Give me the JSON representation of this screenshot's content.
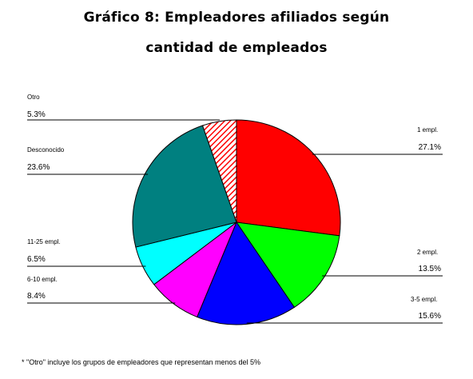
{
  "title_line1": "Gráfico 8: Empleadores afiliados según",
  "title_line2": "cantidad de empleados",
  "footnote": "* \"Otro\" incluye los grupos de empleadores que representan menos del 5%",
  "chart_data": {
    "type": "pie",
    "unit": "%",
    "slices": [
      {
        "name": "1 empl.",
        "value": 27.1,
        "label": "27.1%",
        "color": "#ff0000",
        "pattern": "none"
      },
      {
        "name": "2 empl.",
        "value": 13.5,
        "label": "13.5%",
        "color": "#00ff00",
        "pattern": "none"
      },
      {
        "name": "3-5 empl.",
        "value": 15.6,
        "label": "15.6%",
        "color": "#0000ff",
        "pattern": "none"
      },
      {
        "name": "6-10 empl.",
        "value": 8.4,
        "label": "8.4%",
        "color": "#ff00ff",
        "pattern": "none"
      },
      {
        "name": "11-25 empl.",
        "value": 6.5,
        "label": "6.5%",
        "color": "#00ffff",
        "pattern": "none"
      },
      {
        "name": "Desconocido",
        "value": 23.6,
        "label": "23.6%",
        "color": "#008080",
        "pattern": "none"
      },
      {
        "name": "Otro",
        "value": 5.3,
        "label": "5.3%",
        "color": "#ff0000",
        "pattern": "diagonal-hatch"
      }
    ]
  }
}
